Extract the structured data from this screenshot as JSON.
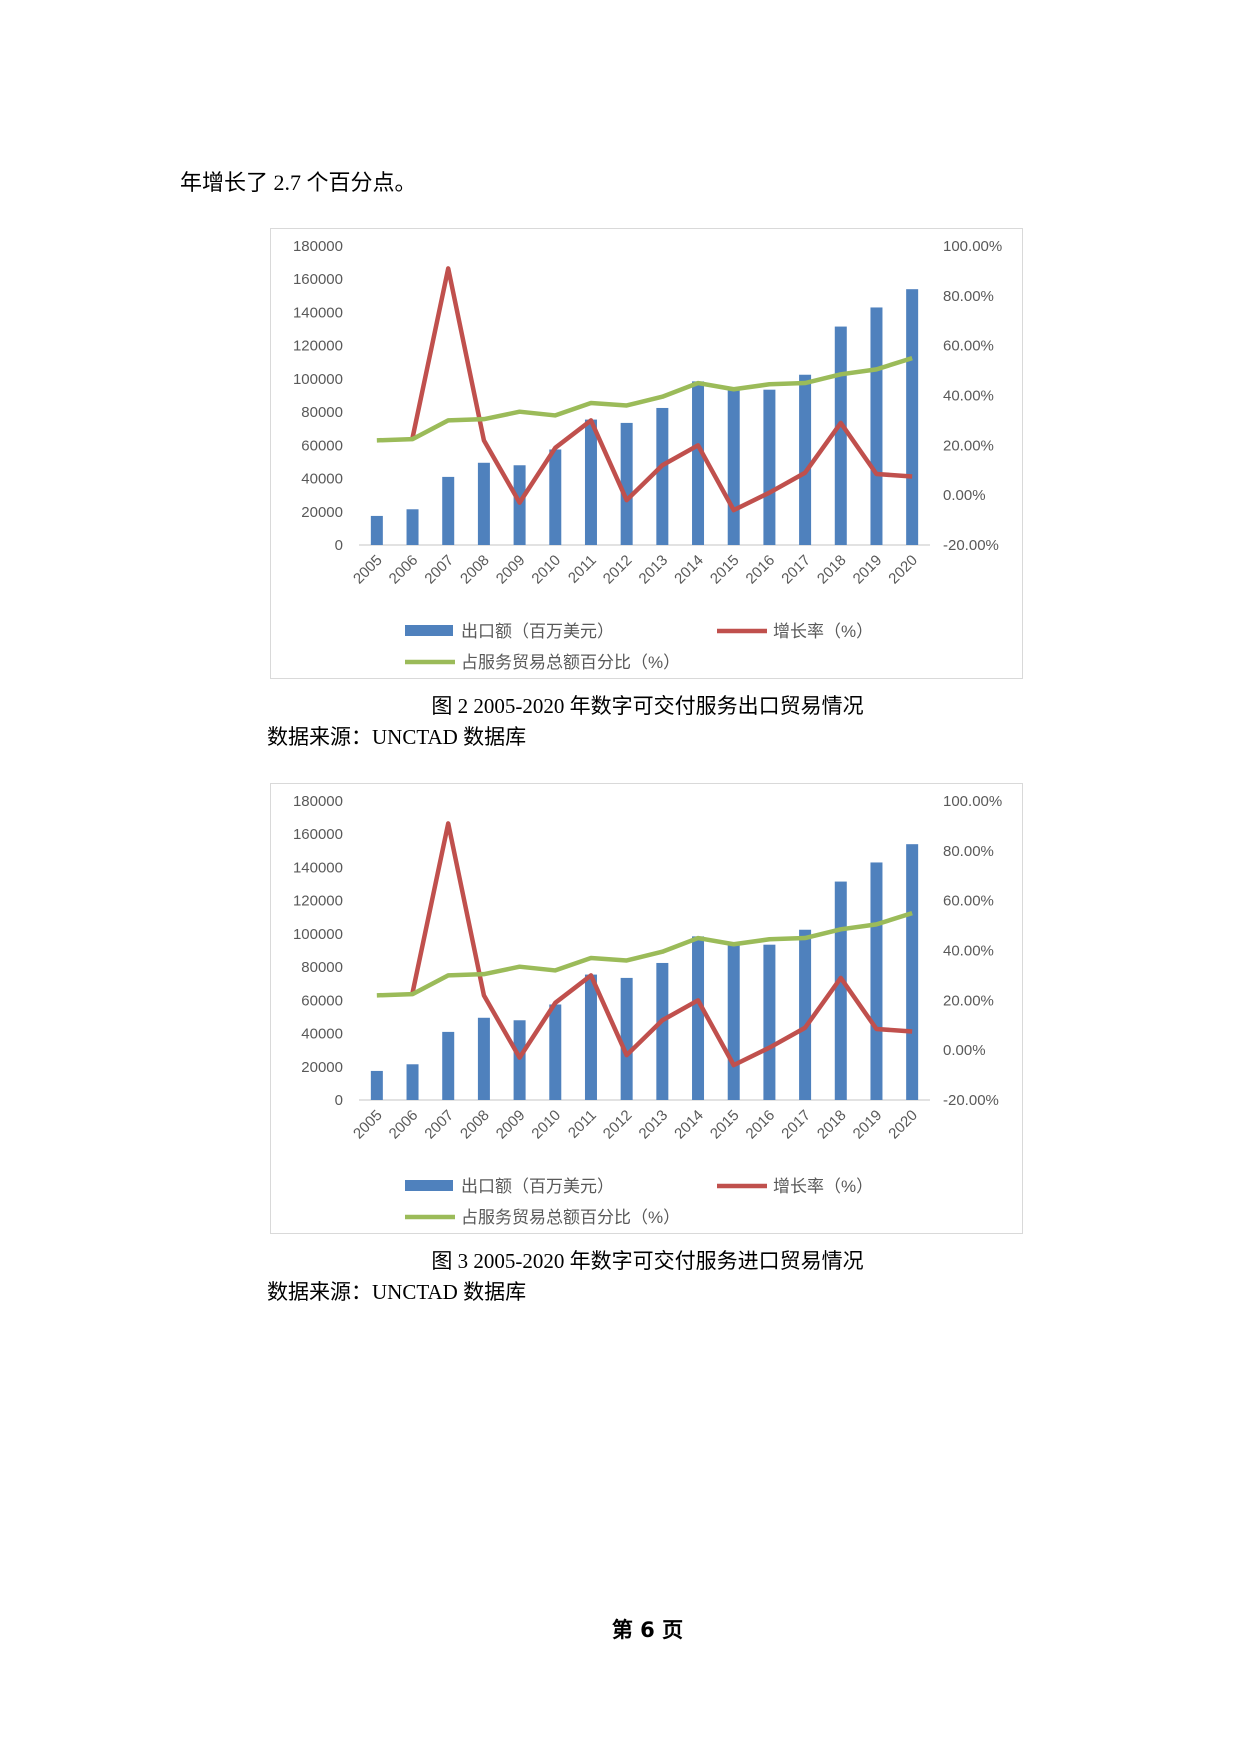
{
  "intro_text": "年增长了 2.7 个百分点。",
  "figures": [
    {
      "caption": "图 2  2005-2020 年数字可交付服务出口贸易情况",
      "source": "数据来源：UNCTAD 数据库"
    },
    {
      "caption": "图 3  2005-2020 年数字可交付服务进口贸易情况",
      "source": "数据来源：UNCTAD 数据库"
    }
  ],
  "page_footer": "第 6 页",
  "chart_data": [
    {
      "type": "bar+line",
      "categories": [
        "2005",
        "2006",
        "2007",
        "2008",
        "2009",
        "2010",
        "2011",
        "2012",
        "2013",
        "2014",
        "2015",
        "2016",
        "2017",
        "2018",
        "2019",
        "2020"
      ],
      "left_axis": {
        "ylim": [
          0,
          180000
        ],
        "ticks": [
          "0",
          "20000",
          "40000",
          "60000",
          "80000",
          "100000",
          "120000",
          "140000",
          "160000",
          "180000"
        ]
      },
      "right_axis": {
        "ylim": [
          -20,
          100
        ],
        "ticks": [
          "-20.00%",
          "0.00%",
          "20.00%",
          "40.00%",
          "60.00%",
          "80.00%",
          "100.00%"
        ]
      },
      "series": [
        {
          "name": "出口额（百万美元）",
          "kind": "bar",
          "axis": "left",
          "color": "#4F81BD",
          "values": [
            17500,
            21500,
            41000,
            49500,
            48000,
            57500,
            75500,
            73500,
            82500,
            98500,
            94000,
            93500,
            102500,
            131500,
            143000,
            154000
          ]
        },
        {
          "name": "增长率（%）",
          "kind": "line",
          "axis": "right",
          "color": "#C0504D",
          "values": [
            null,
            23,
            91,
            22,
            -3,
            19,
            30,
            -2,
            12,
            20,
            -6,
            1,
            9,
            29,
            8.5,
            7.5
          ]
        },
        {
          "name": "占服务贸易总额百分比（%）",
          "kind": "line",
          "axis": "right",
          "color": "#9BBB59",
          "values": [
            22,
            22.5,
            30,
            30.5,
            33.5,
            32,
            37,
            36,
            39.5,
            45,
            42.5,
            44.5,
            45,
            48.5,
            50.5,
            55
          ]
        }
      ],
      "grid": false,
      "legend": "bottom"
    },
    {
      "type": "bar+line",
      "categories": [
        "2005",
        "2006",
        "2007",
        "2008",
        "2009",
        "2010",
        "2011",
        "2012",
        "2013",
        "2014",
        "2015",
        "2016",
        "2017",
        "2018",
        "2019",
        "2020"
      ],
      "left_axis": {
        "ylim": [
          0,
          180000
        ],
        "ticks": [
          "0",
          "20000",
          "40000",
          "60000",
          "80000",
          "100000",
          "120000",
          "140000",
          "160000",
          "180000"
        ]
      },
      "right_axis": {
        "ylim": [
          -20,
          100
        ],
        "ticks": [
          "-20.00%",
          "0.00%",
          "20.00%",
          "40.00%",
          "60.00%",
          "80.00%",
          "100.00%"
        ]
      },
      "series": [
        {
          "name": "出口额（百万美元）",
          "kind": "bar",
          "axis": "left",
          "color": "#4F81BD",
          "values": [
            17500,
            21500,
            41000,
            49500,
            48000,
            57500,
            75500,
            73500,
            82500,
            98500,
            94000,
            93500,
            102500,
            131500,
            143000,
            154000
          ]
        },
        {
          "name": "增长率（%）",
          "kind": "line",
          "axis": "right",
          "color": "#C0504D",
          "values": [
            null,
            23,
            91,
            22,
            -3,
            19,
            30,
            -2,
            12,
            20,
            -6,
            1,
            9,
            29,
            8.5,
            7.5
          ]
        },
        {
          "name": "占服务贸易总额百分比（%）",
          "kind": "line",
          "axis": "right",
          "color": "#9BBB59",
          "values": [
            22,
            22.5,
            30,
            30.5,
            33.5,
            32,
            37,
            36,
            39.5,
            45,
            42.5,
            44.5,
            45,
            48.5,
            50.5,
            55
          ]
        }
      ],
      "grid": false,
      "legend": "bottom"
    }
  ]
}
